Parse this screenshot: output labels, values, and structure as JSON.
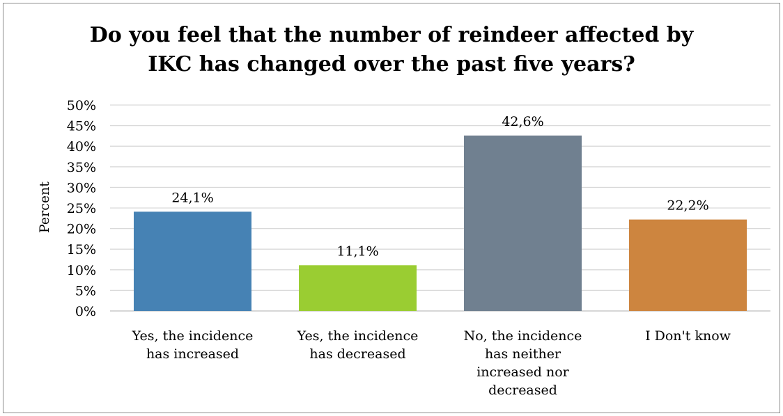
{
  "chart_data": {
    "type": "bar",
    "title": "Do you feel that the number of reindeer affected by IKC has changed over the past five years?",
    "ylabel": "Percent",
    "xlabel": "",
    "ylim": [
      0,
      50
    ],
    "y_ticks": [
      "0%",
      "5%",
      "10%",
      "15%",
      "20%",
      "25%",
      "30%",
      "35%",
      "40%",
      "45%",
      "50%"
    ],
    "grid": "horizontal",
    "legend": "none",
    "categories": [
      [
        "Yes, the incidence",
        "has increased"
      ],
      [
        "Yes, the incidence",
        "has decreased"
      ],
      [
        "No, the incidence",
        "has neither",
        "increased nor",
        "decreased"
      ],
      [
        "I Don't know"
      ]
    ],
    "values": [
      24.1,
      11.1,
      42.6,
      22.2
    ],
    "data_labels": [
      "24,1%",
      "11,1%",
      "42,6%",
      "22,2%"
    ],
    "colors": [
      "#4682b4",
      "#9acd32",
      "#708090",
      "#cd853f"
    ]
  }
}
